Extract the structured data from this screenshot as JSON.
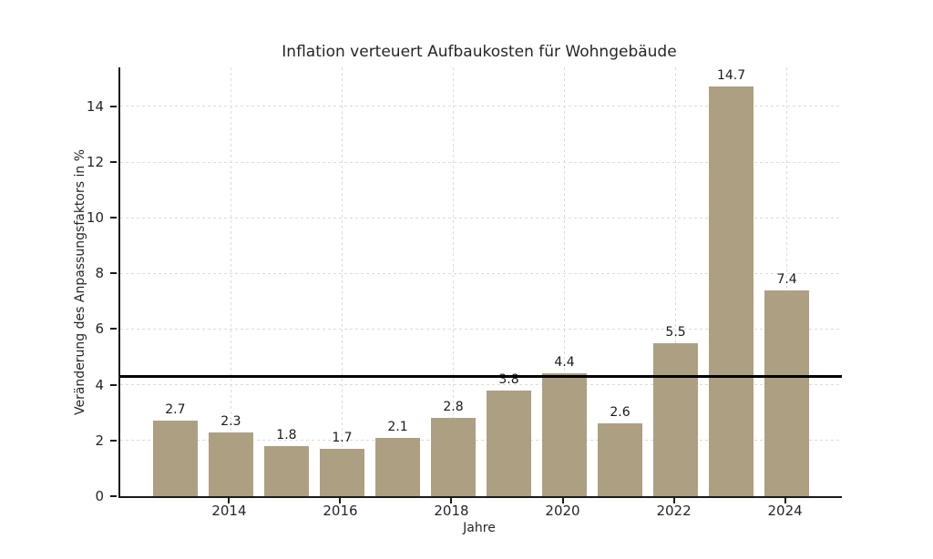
{
  "chart_data": {
    "type": "bar",
    "title": "Inflation verteuert Aufbaukosten für Wohngebäude",
    "xlabel": "Jahre",
    "ylabel": "Veränderung des Anpassungsfaktors in %",
    "categories": [
      2013,
      2014,
      2015,
      2016,
      2017,
      2018,
      2019,
      2020,
      2021,
      2022,
      2023,
      2024
    ],
    "values": [
      2.7,
      2.3,
      1.8,
      1.7,
      2.1,
      2.8,
      3.8,
      4.4,
      2.6,
      5.5,
      14.7,
      7.4
    ],
    "bar_labels": [
      "2.7",
      "2.3",
      "1.8",
      "1.7",
      "2.1",
      "2.8",
      "3.8",
      "4.4",
      "2.6",
      "5.5",
      "14.7",
      "7.4"
    ],
    "reference_line": {
      "value": 4.3
    },
    "xticks": [
      2014,
      2016,
      2018,
      2020,
      2022,
      2024
    ],
    "yticks": [
      0,
      2,
      4,
      6,
      8,
      10,
      12,
      14
    ],
    "xlim": [
      2012.01,
      2024.99
    ],
    "ylim": [
      0,
      15.4
    ],
    "bar_width": 0.8,
    "grid": "dashed",
    "legend": "none",
    "colors": {
      "bar": "#ad9f82",
      "grid": "#dcdcdc",
      "spine": "#1a1a1a",
      "text": "#262626",
      "reference_line": "#000000",
      "background": "#ffffff"
    }
  }
}
